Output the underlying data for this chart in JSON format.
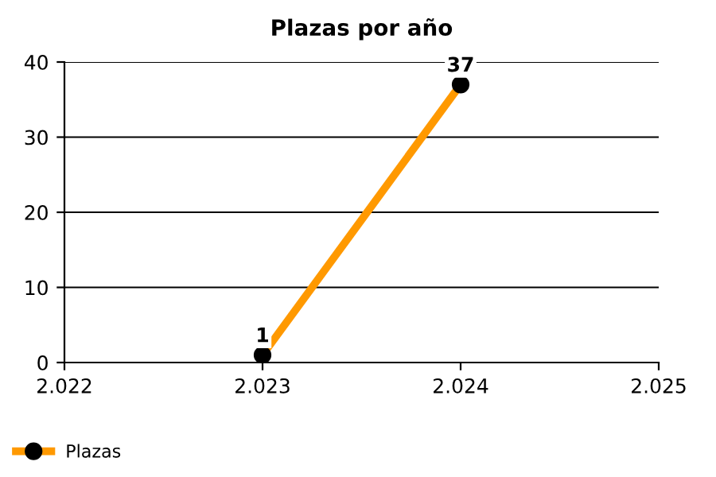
{
  "chart_data": {
    "type": "line",
    "title": "Plazas por año",
    "x": [
      2023,
      2024
    ],
    "series": [
      {
        "name": "Plazas",
        "color": "#ff9900",
        "values": [
          1,
          37
        ]
      }
    ],
    "xlim": [
      2022,
      2025
    ],
    "xticks": [
      {
        "value": 2022,
        "label": "2.022"
      },
      {
        "value": 2023,
        "label": "2.023"
      },
      {
        "value": 2024,
        "label": "2.024"
      },
      {
        "value": 2025,
        "label": "2.025"
      }
    ],
    "ylim": [
      0,
      40
    ],
    "yticks": [
      0,
      10,
      20,
      30,
      40
    ],
    "grid": "y",
    "legend": "bottom left",
    "marker": "circle",
    "line_style": "solid",
    "data_labels": true
  }
}
